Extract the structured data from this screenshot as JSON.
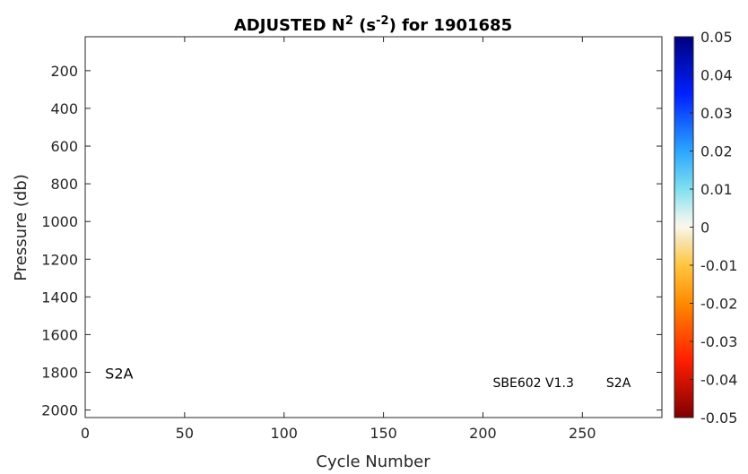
{
  "chart_data": {
    "type": "heatmap",
    "title": {
      "prefix": "ADJUSTED N",
      "sup1": "2",
      "mid": " (s",
      "sup2": "-2",
      "suffix": ") for 1901685"
    },
    "xlabel": "Cycle Number",
    "ylabel": "Pressure (db)",
    "xlim": [
      0,
      290
    ],
    "ylim": [
      2040,
      20
    ],
    "y_reversed": true,
    "x_ticks": [
      0,
      50,
      100,
      150,
      200,
      250
    ],
    "x_tick_labels": [
      "0",
      "50",
      "100",
      "150",
      "200",
      "250"
    ],
    "y_ticks": [
      200,
      400,
      600,
      800,
      1000,
      1200,
      1400,
      1600,
      1800,
      2000
    ],
    "y_tick_labels": [
      "200",
      "400",
      "600",
      "800",
      "1000",
      "1200",
      "1400",
      "1600",
      "1800",
      "2000"
    ],
    "series": [],
    "annotations": [
      {
        "text": "S2A",
        "x": 10,
        "y": 1805,
        "style": "big"
      },
      {
        "text": "SBE602 V1.3",
        "x": 205,
        "y": 1850,
        "style": "small"
      },
      {
        "text": "S2A",
        "x": 262,
        "y": 1850,
        "style": "small"
      }
    ],
    "colorbar": {
      "range": [
        -0.05,
        0.05
      ],
      "ticks": [
        0.05,
        0.04,
        0.03,
        0.02,
        0.01,
        0,
        -0.01,
        -0.02,
        -0.03,
        -0.04,
        -0.05
      ],
      "tick_labels": [
        "0.05",
        "0.04",
        "0.03",
        "0.02",
        "0.01",
        "0",
        "-0.01",
        "-0.02",
        "-0.03",
        "-0.04",
        "-0.05"
      ],
      "colormap_stops": [
        {
          "v": 0.05,
          "c": "#00007f"
        },
        {
          "v": 0.035,
          "c": "#0020ff"
        },
        {
          "v": 0.02,
          "c": "#2aa6ff"
        },
        {
          "v": 0.01,
          "c": "#7fe0ee"
        },
        {
          "v": 0.003,
          "c": "#dff2f0"
        },
        {
          "v": 0.0,
          "c": "#fdf7ec"
        },
        {
          "v": -0.003,
          "c": "#f7e6b8"
        },
        {
          "v": -0.01,
          "c": "#ffc640"
        },
        {
          "v": -0.02,
          "c": "#ff8a00"
        },
        {
          "v": -0.035,
          "c": "#ff1e00"
        },
        {
          "v": -0.05,
          "c": "#7f0000"
        }
      ]
    },
    "grid": false
  }
}
